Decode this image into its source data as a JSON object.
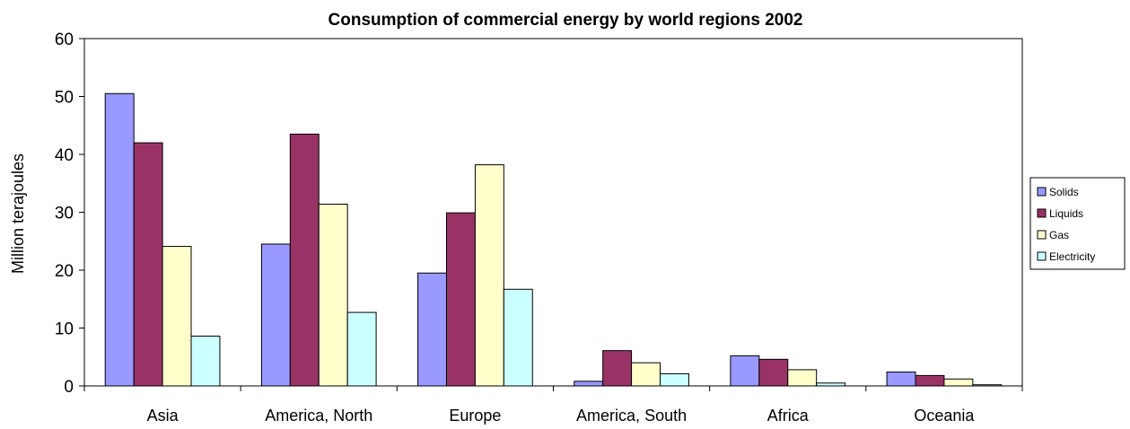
{
  "chart_data": {
    "type": "bar",
    "title": "Consumption of commercial energy by world regions 2002",
    "xlabel": "",
    "ylabel": "Million terajoules",
    "ylim": [
      0,
      60
    ],
    "yticks": [
      "0",
      "10",
      "20",
      "30",
      "40",
      "50",
      "60"
    ],
    "grid": false,
    "legend_position": "right",
    "categories": [
      "Asia",
      "America, North",
      "Europe",
      "America, South",
      "Africa",
      "Oceania"
    ],
    "series": [
      {
        "name": "Solids",
        "color": "#9999ff",
        "values": [
          50.5,
          24.5,
          19.5,
          0.8,
          5.2,
          2.4
        ]
      },
      {
        "name": "Liquids",
        "color": "#993366",
        "values": [
          42.0,
          43.5,
          29.9,
          6.1,
          4.6,
          1.8
        ]
      },
      {
        "name": "Gas",
        "color": "#ffffcc",
        "values": [
          24.1,
          31.4,
          38.2,
          4.0,
          2.8,
          1.2
        ]
      },
      {
        "name": "Electricity",
        "color": "#ccffff",
        "values": [
          8.6,
          12.7,
          16.7,
          2.1,
          0.5,
          0.2
        ]
      }
    ]
  }
}
